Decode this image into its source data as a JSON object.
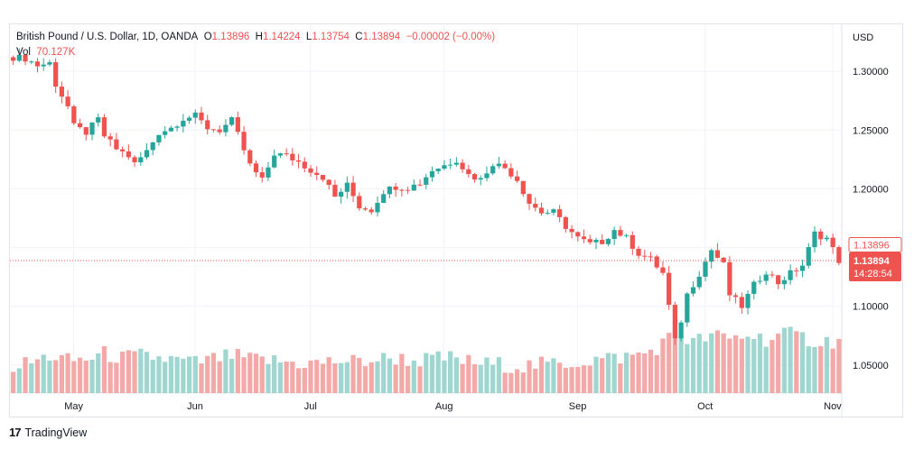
{
  "legend": {
    "symbol_text": "British Pound / U.S. Dollar, 1D, OANDA",
    "o_label": "O",
    "o_value": "1.13896",
    "h_label": "H",
    "h_value": "1.14224",
    "l_label": "L",
    "l_value": "1.13754",
    "c_label": "C",
    "c_value": "1.13894",
    "change": "−0.00002 (−0.00%)",
    "vol_label": "Vol",
    "vol_value": "70.127K"
  },
  "branding": {
    "logo_text": "17",
    "name": "TradingView"
  },
  "colors": {
    "up": "#26a69a",
    "down": "#ef5350",
    "vol_up": "#9fd6d0",
    "vol_down": "#f3a9a7",
    "grid": "#f0f3fa",
    "axis_text": "#131722",
    "price_line": "#ef5350"
  },
  "chart_data": {
    "type": "candlestick",
    "currency": "USD",
    "y_ticks": [
      "1.30000",
      "1.25000",
      "1.20000",
      "1.15000",
      "1.10000",
      "1.05000"
    ],
    "y_tick_values": [
      1.3,
      1.25,
      1.2,
      1.15,
      1.1,
      1.05
    ],
    "ylim": [
      1.01,
      1.34
    ],
    "x_ticks": [
      "May",
      "Jun",
      "Jul",
      "Aug",
      "Sep",
      "Oct",
      "Nov"
    ],
    "x_tick_index": [
      10,
      30,
      49,
      71,
      93,
      114,
      135
    ],
    "last_price_label": "1.13894",
    "high_label": "1.13896",
    "countdown": "14:28:54",
    "close_path": [
      [
        0,
        1.312
      ],
      [
        2,
        1.311
      ],
      [
        4,
        1.305
      ],
      [
        6,
        1.307
      ],
      [
        7,
        1.289
      ],
      [
        9,
        1.27
      ],
      [
        10,
        1.253
      ],
      [
        12,
        1.248
      ],
      [
        14,
        1.259
      ],
      [
        15,
        1.245
      ],
      [
        17,
        1.234
      ],
      [
        19,
        1.228
      ],
      [
        20,
        1.221
      ],
      [
        22,
        1.232
      ],
      [
        24,
        1.248
      ],
      [
        26,
        1.252
      ],
      [
        28,
        1.26
      ],
      [
        30,
        1.262
      ],
      [
        32,
        1.252
      ],
      [
        34,
        1.25
      ],
      [
        36,
        1.258
      ],
      [
        37,
        1.246
      ],
      [
        39,
        1.22
      ],
      [
        41,
        1.207
      ],
      [
        43,
        1.23
      ],
      [
        45,
        1.228
      ],
      [
        47,
        1.223
      ],
      [
        49,
        1.216
      ],
      [
        51,
        1.21
      ],
      [
        53,
        1.193
      ],
      [
        55,
        1.203
      ],
      [
        57,
        1.185
      ],
      [
        59,
        1.182
      ],
      [
        61,
        1.198
      ],
      [
        63,
        1.202
      ],
      [
        65,
        1.201
      ],
      [
        67,
        1.205
      ],
      [
        69,
        1.216
      ],
      [
        71,
        1.22
      ],
      [
        73,
        1.225
      ],
      [
        75,
        1.212
      ],
      [
        77,
        1.208
      ],
      [
        79,
        1.222
      ],
      [
        81,
        1.218
      ],
      [
        83,
        1.208
      ],
      [
        85,
        1.188
      ],
      [
        87,
        1.18
      ],
      [
        89,
        1.18
      ],
      [
        91,
        1.168
      ],
      [
        93,
        1.158
      ],
      [
        95,
        1.153
      ],
      [
        97,
        1.155
      ],
      [
        99,
        1.165
      ],
      [
        101,
        1.158
      ],
      [
        103,
        1.145
      ],
      [
        105,
        1.14
      ],
      [
        107,
        1.128
      ],
      [
        108,
        1.1
      ],
      [
        109,
        1.07
      ],
      [
        110,
        1.088
      ],
      [
        111,
        1.11
      ],
      [
        113,
        1.128
      ],
      [
        115,
        1.148
      ],
      [
        117,
        1.135
      ],
      [
        118,
        1.11
      ],
      [
        120,
        1.1
      ],
      [
        122,
        1.118
      ],
      [
        124,
        1.13
      ],
      [
        126,
        1.12
      ],
      [
        128,
        1.128
      ],
      [
        130,
        1.135
      ],
      [
        132,
        1.162
      ],
      [
        134,
        1.158
      ],
      [
        136,
        1.139
      ]
    ],
    "volume_path": [
      [
        0,
        0.4
      ],
      [
        3,
        0.45
      ],
      [
        6,
        0.55
      ],
      [
        9,
        0.48
      ],
      [
        12,
        0.5
      ],
      [
        15,
        0.58
      ],
      [
        18,
        0.52
      ],
      [
        21,
        0.55
      ],
      [
        24,
        0.52
      ],
      [
        27,
        0.48
      ],
      [
        30,
        0.45
      ],
      [
        33,
        0.5
      ],
      [
        36,
        0.55
      ],
      [
        39,
        0.5
      ],
      [
        42,
        0.48
      ],
      [
        45,
        0.46
      ],
      [
        48,
        0.44
      ],
      [
        51,
        0.45
      ],
      [
        54,
        0.48
      ],
      [
        57,
        0.46
      ],
      [
        60,
        0.5
      ],
      [
        63,
        0.52
      ],
      [
        66,
        0.48
      ],
      [
        69,
        0.5
      ],
      [
        72,
        0.52
      ],
      [
        75,
        0.46
      ],
      [
        78,
        0.43
      ],
      [
        81,
        0.42
      ],
      [
        84,
        0.4
      ],
      [
        87,
        0.42
      ],
      [
        90,
        0.44
      ],
      [
        93,
        0.46
      ],
      [
        96,
        0.5
      ],
      [
        99,
        0.52
      ],
      [
        102,
        0.55
      ],
      [
        105,
        0.62
      ],
      [
        108,
        0.8
      ],
      [
        110,
        0.85
      ],
      [
        112,
        0.75
      ],
      [
        115,
        0.85
      ],
      [
        118,
        0.8
      ],
      [
        121,
        0.86
      ],
      [
        124,
        0.8
      ],
      [
        127,
        0.88
      ],
      [
        130,
        0.82
      ],
      [
        133,
        0.76
      ],
      [
        136,
        0.78
      ]
    ]
  }
}
